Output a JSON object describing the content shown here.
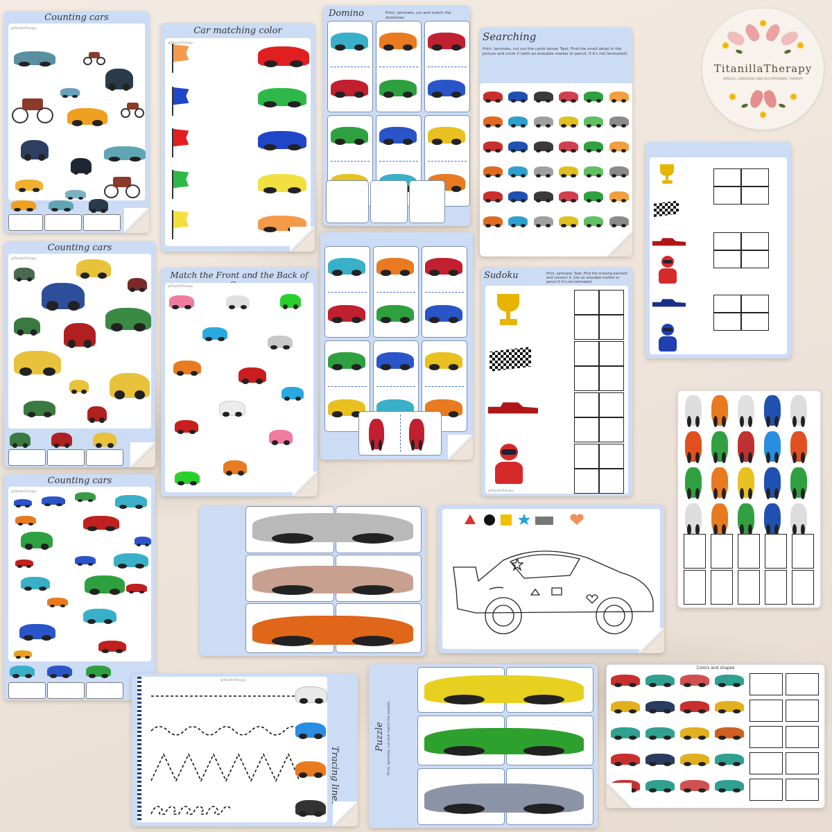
{
  "brand": {
    "name": "TitanillaTherapy",
    "tagline": "SPEECH, LANGUAGE AND OCCUPATIONAL THERAPY"
  },
  "credit": "@TitanillaTherapy",
  "sheets": {
    "counting1": {
      "title": "Counting cars"
    },
    "counting2": {
      "title": "Counting cars"
    },
    "counting3": {
      "title": "Counting cars"
    },
    "color_match": {
      "title": "Car matching color"
    },
    "front_back": {
      "title": "Match the Front and the Back of Cars"
    },
    "domino": {
      "title": "Domino",
      "instructions": "Print, laminate, cut and match the dominoes"
    },
    "searching": {
      "title": "Searching",
      "instructions": "Print, laminate, cut out the cards below. Task: Find the small detail in the picture and circle it (with an erasable marker or pencil, if it's not laminated)"
    },
    "sudoku": {
      "title": "Sudoku",
      "instructions": "Print, laminate. Task: Find the missing element and connect it. Use an erasable marker or pencil if it's not laminated"
    },
    "tracing": {
      "title": "Tracing lines"
    },
    "puzzle": {
      "title": "Puzzle",
      "instructions": "Print, laminate, cut and match the puzzles"
    },
    "colors_sort": {
      "title": "Colors and shapes"
    }
  },
  "colors": {
    "sheet_bg": "#ccdcf5",
    "accent_blue": "#3a6fcf",
    "flag_orange": "#f59a4a",
    "flag_blue": "#1f45c9",
    "flag_red": "#e02020",
    "flag_green": "#2fb84a",
    "flag_yellow": "#f2e040"
  }
}
